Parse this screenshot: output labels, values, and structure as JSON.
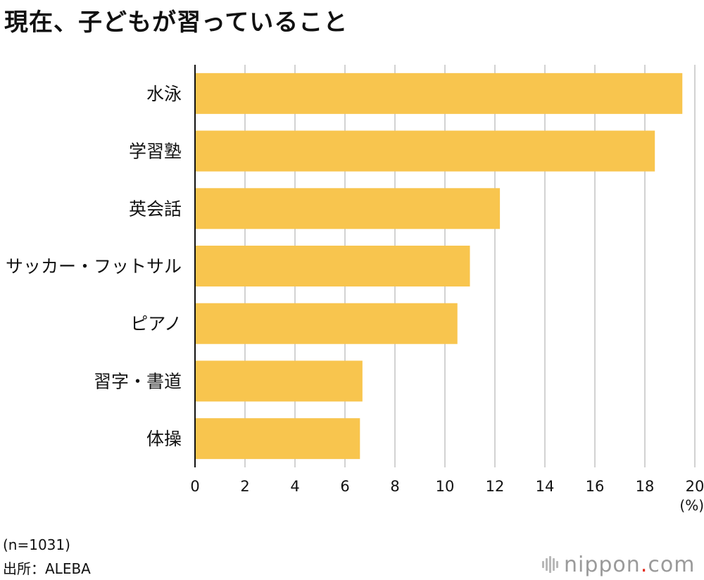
{
  "title": "現在、子どもが習っていること",
  "chart_data": {
    "type": "bar",
    "orientation": "horizontal",
    "title": "現在、子どもが習っていること",
    "categories": [
      "水泳",
      "学習塾",
      "英会話",
      "サッカー・フットサル",
      "ピアノ",
      "習字・書道",
      "体操"
    ],
    "values": [
      19.5,
      18.4,
      12.2,
      11.0,
      10.5,
      6.7,
      6.6
    ],
    "xlim": [
      0,
      20
    ],
    "xticks": [
      0,
      2,
      4,
      6,
      8,
      10,
      12,
      14,
      16,
      18,
      20
    ],
    "xlabel": "(%)",
    "ylabel": "",
    "grid": true,
    "bar_color": "#f8c54e",
    "grid_color": "#d2d2d2",
    "axis_color": "#111111"
  },
  "unit_label": "(%)",
  "footnotes": {
    "sample": "(n=1031)",
    "source": "出所：ALEBA"
  },
  "logo": {
    "name": "nippon",
    "dot": ".",
    "suffix": "com",
    "dot_color": "#e32b1f"
  }
}
